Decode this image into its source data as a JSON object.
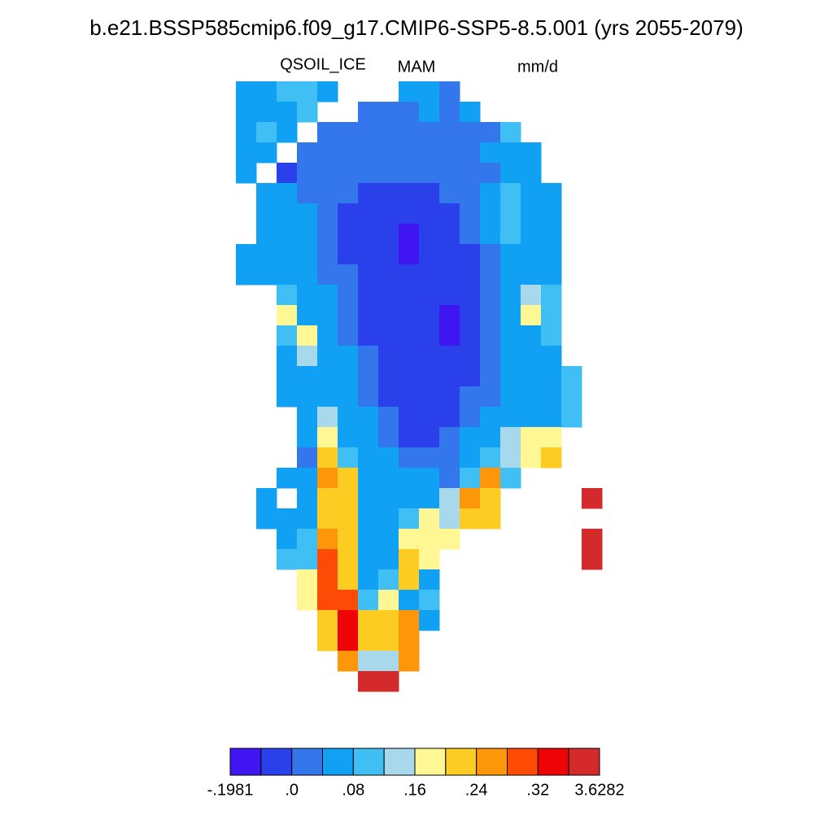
{
  "chart_data": {
    "type": "heatmap",
    "title": "b.e21.BSSP585cmip6.f09_g17.CMIP6-SSP5-8.5.001 (yrs 2055-2079)",
    "left_label": "QSOIL_ICE",
    "center_label": "MAM",
    "right_label": "mm/d",
    "levels": [
      -0.1981,
      -0.02,
      0,
      0.04,
      0.08,
      0.12,
      0.16,
      0.2,
      0.24,
      0.28,
      0.32,
      0.36,
      3.6282
    ],
    "level_labels": [
      {
        "value": -0.1981,
        "label": "-.1981"
      },
      {
        "value": 0,
        "label": ".0"
      },
      {
        "value": 0.08,
        "label": ".08"
      },
      {
        "value": 0.16,
        "label": ".16"
      },
      {
        "value": 0.24,
        "label": ".24"
      },
      {
        "value": 0.32,
        "label": ".32"
      },
      3.6282
    ],
    "colors": [
      "#3f16f2",
      "#2a40ea",
      "#3476ec",
      "#10a0f4",
      "#40bff4",
      "#a8d8ec",
      "#fff694",
      "#fccc22",
      "#fd9608",
      "#fd4a04",
      "#ee0404",
      "#d42a2c"
    ],
    "grid": [
      [
        0.06,
        0.06,
        0.1,
        0.1,
        0.06,
        null,
        null,
        null,
        0.06,
        0.06,
        0.02
      ],
      [
        0.06,
        0.06,
        0.06,
        0.1,
        null,
        null,
        0.02,
        0.02,
        0.02,
        0.06,
        0.02,
        0.06
      ],
      [
        0.06,
        0.1,
        0.06,
        null,
        0.02,
        0.02,
        0.02,
        0.02,
        0.02,
        0.02,
        0.02,
        0.02,
        0.02,
        0.1
      ],
      [
        0.06,
        0.06,
        null,
        0.02,
        0.02,
        0.02,
        0.02,
        0.02,
        0.02,
        0.02,
        0.02,
        0.02,
        0.06,
        0.06,
        0.06
      ],
      [
        0.06,
        null,
        -0.01,
        0.02,
        0.02,
        0.02,
        0.02,
        0.02,
        0.02,
        0.02,
        0.02,
        0.02,
        0.02,
        0.06,
        0.06
      ],
      [
        null,
        0.06,
        0.06,
        0.02,
        0.02,
        0.02,
        -0.01,
        -0.01,
        -0.01,
        -0.01,
        0.02,
        0.02,
        0.06,
        0.1,
        0.06,
        0.06
      ],
      [
        null,
        0.06,
        0.06,
        0.06,
        0.02,
        -0.01,
        -0.01,
        -0.01,
        -0.01,
        -0.01,
        -0.01,
        0.02,
        0.06,
        0.1,
        0.06,
        0.06
      ],
      [
        null,
        0.06,
        0.06,
        0.06,
        0.02,
        -0.01,
        -0.01,
        -0.01,
        -0.1,
        -0.01,
        -0.01,
        0.02,
        0.06,
        0.1,
        0.06,
        0.06
      ],
      [
        0.06,
        0.06,
        0.06,
        0.06,
        0.02,
        -0.01,
        -0.01,
        -0.01,
        -0.1,
        -0.01,
        -0.01,
        -0.01,
        0.02,
        0.06,
        0.06,
        0.06
      ],
      [
        0.06,
        0.06,
        0.06,
        0.06,
        0.02,
        0.02,
        -0.01,
        -0.01,
        -0.01,
        -0.01,
        -0.01,
        -0.01,
        0.02,
        0.06,
        0.06,
        0.06
      ],
      [
        null,
        null,
        0.1,
        0.06,
        0.06,
        0.02,
        -0.01,
        -0.01,
        -0.01,
        -0.01,
        -0.01,
        -0.01,
        0.02,
        0.06,
        0.14,
        0.1
      ],
      [
        null,
        null,
        0.18,
        0.06,
        0.06,
        0.02,
        -0.01,
        -0.01,
        -0.01,
        -0.01,
        -0.1,
        -0.01,
        0.02,
        0.06,
        0.18,
        0.1
      ],
      [
        null,
        null,
        0.1,
        0.18,
        0.06,
        0.02,
        -0.01,
        -0.01,
        -0.01,
        -0.01,
        -0.1,
        -0.01,
        0.02,
        0.06,
        0.06,
        0.1
      ],
      [
        null,
        null,
        0.06,
        0.14,
        0.06,
        0.06,
        0.02,
        -0.01,
        -0.01,
        -0.01,
        -0.01,
        -0.01,
        0.02,
        0.06,
        0.06,
        0.06
      ],
      [
        null,
        null,
        0.06,
        0.06,
        0.06,
        0.06,
        0.02,
        -0.01,
        -0.01,
        -0.01,
        -0.01,
        -0.01,
        0.02,
        0.06,
        0.06,
        0.06,
        0.1
      ],
      [
        null,
        null,
        0.06,
        0.06,
        0.06,
        0.06,
        0.02,
        -0.01,
        -0.01,
        -0.01,
        -0.01,
        0.02,
        0.02,
        0.06,
        0.06,
        0.06,
        0.1
      ],
      [
        null,
        null,
        null,
        0.06,
        0.14,
        0.06,
        0.06,
        0.02,
        -0.01,
        -0.01,
        -0.01,
        0.02,
        0.06,
        0.06,
        0.06,
        0.06,
        0.1
      ],
      [
        null,
        null,
        null,
        0.06,
        0.18,
        0.06,
        0.06,
        0.02,
        -0.01,
        -0.01,
        0.02,
        0.06,
        0.06,
        0.14,
        0.18,
        0.18
      ],
      [
        null,
        null,
        null,
        0.02,
        0.22,
        0.1,
        0.06,
        0.06,
        0.02,
        0.02,
        0.02,
        0.06,
        0.1,
        0.14,
        0.18,
        0.22
      ],
      [
        null,
        null,
        0.06,
        0.06,
        0.26,
        0.22,
        0.06,
        0.06,
        0.06,
        0.06,
        0.02,
        0.1,
        0.26,
        0.1
      ],
      [
        null,
        0.06,
        null,
        0.06,
        0.22,
        0.22,
        0.06,
        0.06,
        0.06,
        0.06,
        0.14,
        0.26,
        0.22,
        null,
        null,
        null,
        null,
        1.5
      ],
      [
        null,
        0.06,
        0.06,
        0.06,
        0.22,
        0.22,
        0.06,
        0.06,
        0.1,
        0.18,
        0.14,
        0.22,
        0.22
      ],
      [
        null,
        null,
        0.06,
        0.1,
        0.26,
        0.22,
        0.06,
        0.06,
        0.18,
        0.18,
        0.18,
        null,
        null,
        null,
        null,
        null,
        null,
        1.5
      ],
      [
        null,
        null,
        0.1,
        0.1,
        0.3,
        0.22,
        0.06,
        0.06,
        0.22,
        0.18,
        null,
        null,
        null,
        null,
        null,
        null,
        null,
        1.5
      ],
      [
        null,
        null,
        null,
        0.18,
        0.3,
        0.22,
        0.06,
        0.1,
        0.22,
        0.06
      ],
      [
        null,
        null,
        null,
        0.18,
        0.3,
        0.3,
        0.1,
        0.18,
        0.06,
        0.1
      ],
      [
        null,
        null,
        null,
        null,
        0.22,
        0.34,
        0.22,
        0.22,
        0.26,
        0.06
      ],
      [
        null,
        null,
        null,
        null,
        0.22,
        0.34,
        0.22,
        0.22,
        0.26
      ],
      [
        null,
        null,
        null,
        null,
        null,
        0.26,
        0.14,
        0.14,
        0.26
      ],
      [
        null,
        null,
        null,
        null,
        null,
        null,
        1.5,
        1.5
      ]
    ]
  }
}
